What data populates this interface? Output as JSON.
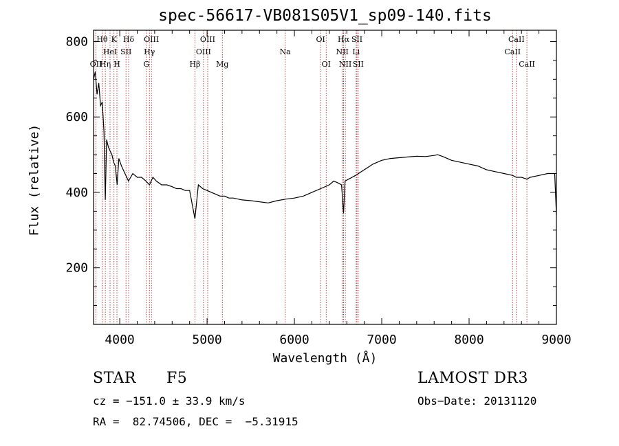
{
  "chart_data": {
    "type": "line",
    "title": "spec-56617-VB081S05V1_sp09-140.fits",
    "xlabel": "Wavelength (Å)",
    "ylabel": "Flux (relative)",
    "xlim": [
      3700,
      9000
    ],
    "ylim": [
      50,
      830
    ],
    "x_ticks": [
      4000,
      5000,
      6000,
      7000,
      8000,
      9000
    ],
    "y_ticks": [
      200,
      400,
      600,
      800
    ],
    "line_color": "#000000",
    "marker_color": "#b03030",
    "spectrum": {
      "x": [
        3700,
        3720,
        3740,
        3760,
        3780,
        3800,
        3820,
        3835,
        3850,
        3870,
        3890,
        3910,
        3930,
        3950,
        3970,
        3990,
        4020,
        4060,
        4100,
        4150,
        4200,
        4250,
        4300,
        4340,
        4380,
        4420,
        4480,
        4540,
        4600,
        4650,
        4700,
        4750,
        4800,
        4861,
        4900,
        4950,
        5000,
        5050,
        5100,
        5150,
        5200,
        5250,
        5300,
        5400,
        5500,
        5600,
        5700,
        5800,
        5900,
        6000,
        6100,
        6200,
        6300,
        6400,
        6450,
        6500,
        6540,
        6563,
        6580,
        6620,
        6700,
        6800,
        6900,
        7000,
        7100,
        7200,
        7300,
        7400,
        7500,
        7600,
        7640,
        7700,
        7800,
        7900,
        8000,
        8100,
        8200,
        8300,
        8400,
        8500,
        8542,
        8600,
        8662,
        8700,
        8800,
        8900,
        8980,
        9000
      ],
      "y": [
        700,
        720,
        660,
        690,
        630,
        640,
        560,
        380,
        540,
        520,
        510,
        500,
        480,
        470,
        420,
        490,
        470,
        450,
        430,
        450,
        440,
        440,
        430,
        420,
        440,
        430,
        420,
        420,
        415,
        410,
        410,
        405,
        405,
        330,
        420,
        410,
        405,
        400,
        395,
        390,
        390,
        385,
        385,
        380,
        378,
        375,
        372,
        378,
        382,
        385,
        390,
        400,
        410,
        420,
        430,
        425,
        420,
        345,
        430,
        435,
        445,
        460,
        475,
        485,
        490,
        492,
        494,
        496,
        495,
        498,
        500,
        495,
        485,
        480,
        475,
        470,
        460,
        455,
        450,
        445,
        440,
        440,
        435,
        440,
        445,
        450,
        450,
        340
      ]
    },
    "lines": [
      {
        "label": "OII",
        "x": 3727,
        "row": 2
      },
      {
        "label": "Hθ",
        "x": 3798,
        "row": 0
      },
      {
        "label": "Hη",
        "x": 3835,
        "row": 2
      },
      {
        "label": "HeI",
        "x": 3889,
        "row": 1
      },
      {
        "label": "K",
        "x": 3934,
        "row": 0
      },
      {
        "label": "H",
        "x": 3968,
        "row": 2
      },
      {
        "label": "SII",
        "x": 4072,
        "row": 1
      },
      {
        "label": "Hδ",
        "x": 4102,
        "row": 0
      },
      {
        "label": "G",
        "x": 4305,
        "row": 2
      },
      {
        "label": "Hγ",
        "x": 4340,
        "row": 1
      },
      {
        "label": "OIII",
        "x": 4363,
        "row": 0
      },
      {
        "label": "Hβ",
        "x": 4861,
        "row": 2
      },
      {
        "label": "OIII",
        "x": 4959,
        "row": 1
      },
      {
        "label": "OIII",
        "x": 5007,
        "row": 0
      },
      {
        "label": "Mg",
        "x": 5175,
        "row": 2
      },
      {
        "label": "Na",
        "x": 5894,
        "row": 1
      },
      {
        "label": "OI",
        "x": 6300,
        "row": 0
      },
      {
        "label": "OI",
        "x": 6364,
        "row": 2
      },
      {
        "label": "NII",
        "x": 6548,
        "row": 1
      },
      {
        "label": "Hα",
        "x": 6563,
        "row": 0
      },
      {
        "label": "NII",
        "x": 6583,
        "row": 2
      },
      {
        "label": "SII",
        "x": 6716,
        "row": 0
      },
      {
        "label": "Li",
        "x": 6707,
        "row": 1
      },
      {
        "label": "SII",
        "x": 6731,
        "row": 2
      },
      {
        "label": "CaII",
        "x": 8498,
        "row": 1
      },
      {
        "label": "CaII",
        "x": 8542,
        "row": 0
      },
      {
        "label": "CaII",
        "x": 8662,
        "row": 2
      }
    ]
  },
  "info": {
    "class": "STAR",
    "subclass": "F5",
    "survey": "LAMOST DR3",
    "cz": "cz = −151.0 ± 33.9 km/s",
    "obs_date": "Obs−Date: 20131120",
    "radec": "RA =  82.74506, DEC =  −5.31915"
  }
}
